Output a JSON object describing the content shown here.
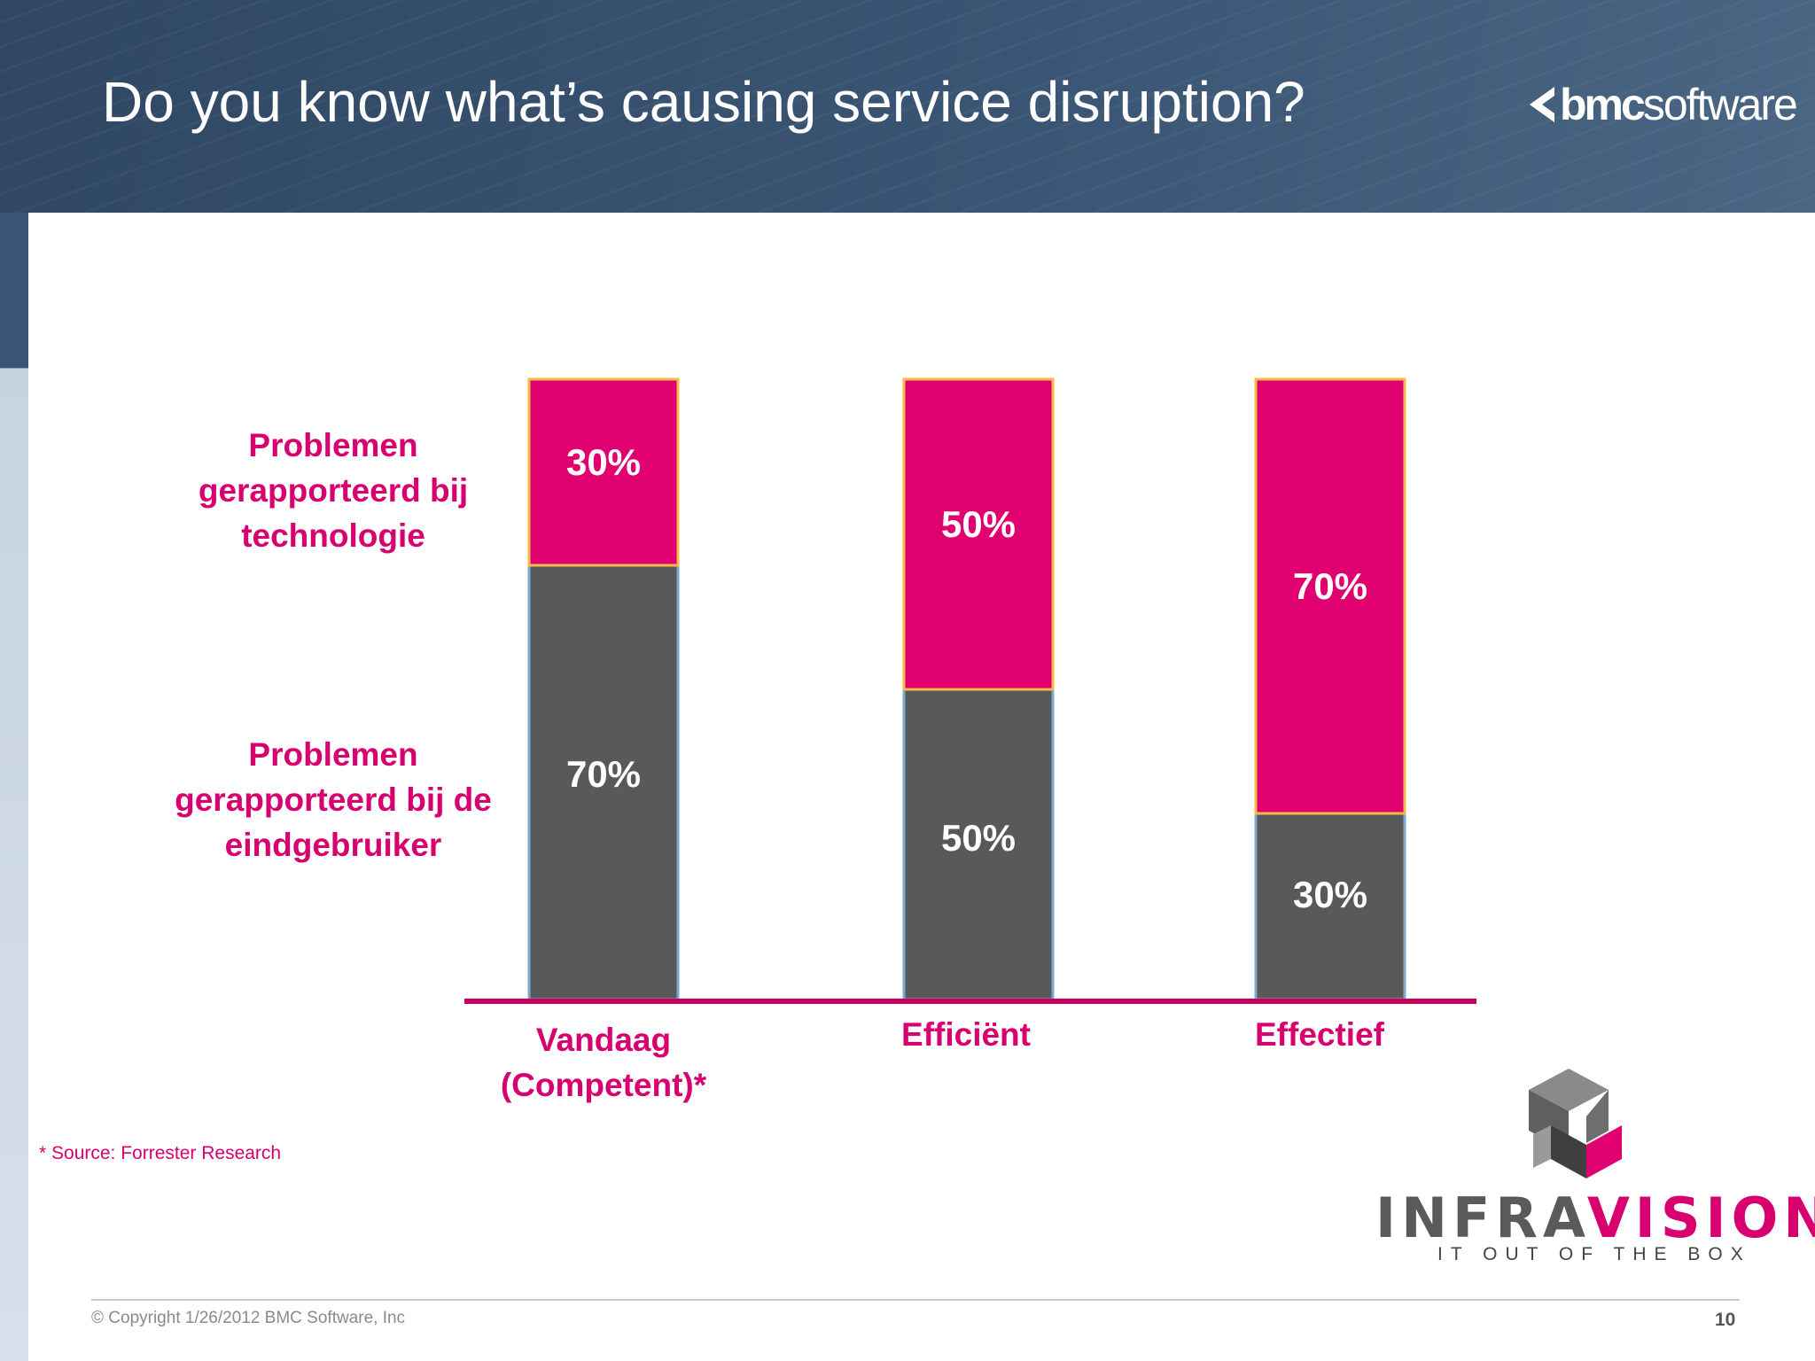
{
  "slide": {
    "title": "Do you know what’s causing service disruption?",
    "brand_bold": "bmc",
    "brand_light": "software",
    "source_note": "* Source: Forrester Research",
    "copyright": "© Copyright 1/26/2012 BMC Software, Inc",
    "page_number": "10",
    "partner_logo_word_a": "INFRA",
    "partner_logo_word_b": "VISION",
    "partner_tagline": "IT OUT OF THE BOX"
  },
  "colors": {
    "header": "#344e6c",
    "technology": "#e0006f",
    "end_user": "#595959",
    "labels": "#d7006e",
    "baseline": "#c8005f"
  },
  "chart_data": {
    "type": "bar",
    "stacked": true,
    "categories": [
      [
        "Vandaag",
        "(Competent)*"
      ],
      [
        "Efficiënt"
      ],
      [
        "Effectief"
      ]
    ],
    "series": [
      {
        "name_lines": [
          "Problemen",
          "gerapporteerd bij de",
          "eindgebruiker"
        ],
        "values": [
          70,
          50,
          30
        ],
        "labels": [
          "70%",
          "50%",
          "30%"
        ]
      },
      {
        "name_lines": [
          "Problemen",
          "gerapporteerd bij",
          "technologie"
        ],
        "values": [
          30,
          50,
          70
        ],
        "labels": [
          "30%",
          "50%",
          "70%"
        ]
      }
    ],
    "ylim": [
      0,
      100
    ],
    "unit": "%",
    "legend": "left"
  }
}
